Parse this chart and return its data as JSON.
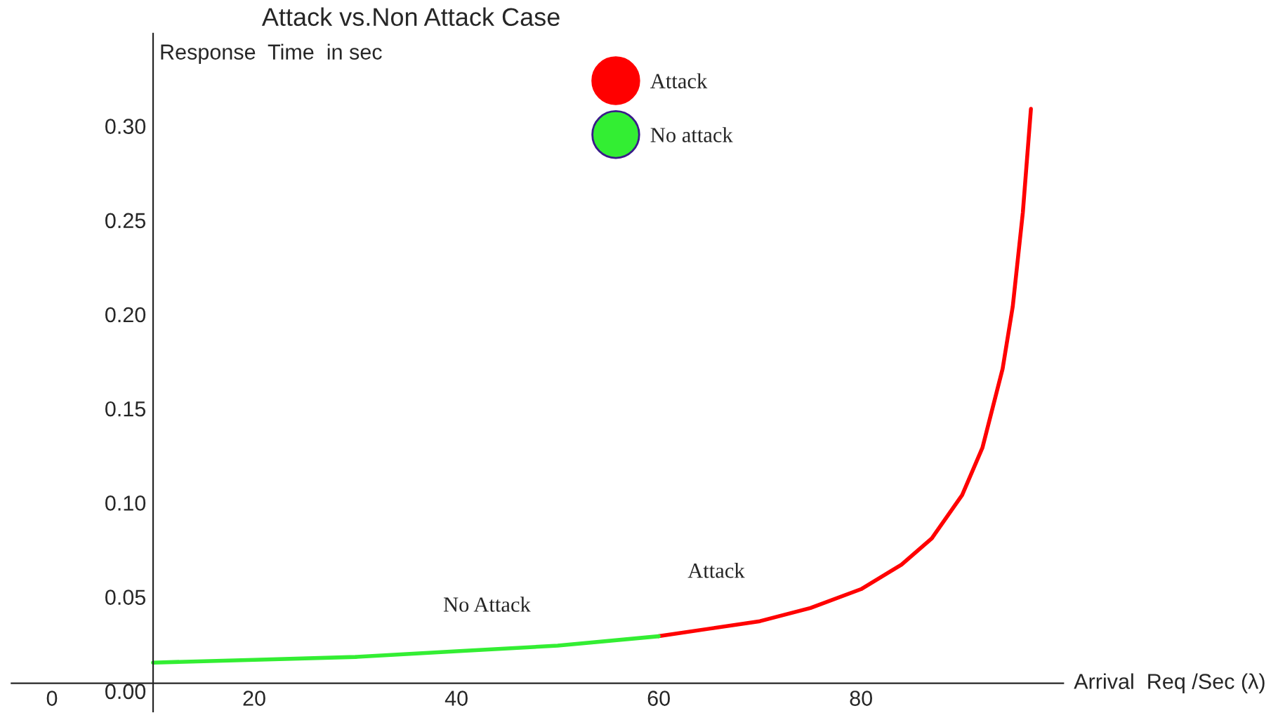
{
  "chart_data": {
    "type": "line",
    "title": "Attack vs.Non Attack Case",
    "xlabel": "Arrival  Req /Sec (λ)",
    "ylabel": "Response  Time  in sec",
    "xlim": [
      -4,
      100
    ],
    "ylim": [
      -0.015,
      0.345
    ],
    "xticks": [
      0,
      20,
      40,
      60,
      80
    ],
    "yticks": [
      {
        "value": 0,
        "label": "0.00"
      },
      {
        "value": 0.05,
        "label": "0.05"
      },
      {
        "value": 0.1,
        "label": "0.10"
      },
      {
        "value": 0.15,
        "label": "0.15"
      },
      {
        "value": 0.2,
        "label": "0.20"
      },
      {
        "value": 0.25,
        "label": "0.25"
      },
      {
        "value": 0.3,
        "label": "0.30"
      }
    ],
    "series": [
      {
        "name": "Attack",
        "color": "#ff0000",
        "x": [
          60,
          65,
          70,
          75,
          80,
          84,
          87,
          90,
          92,
          94,
          95,
          96,
          96.8
        ],
        "values": [
          0.025,
          0.029,
          0.033,
          0.04,
          0.05,
          0.063,
          0.077,
          0.1,
          0.125,
          0.167,
          0.2,
          0.25,
          0.305
        ]
      },
      {
        "name": "No attack",
        "color": "#33ee33",
        "x": [
          10,
          20,
          30,
          40,
          50,
          60
        ],
        "values": [
          0.011,
          0.0125,
          0.014,
          0.017,
          0.02,
          0.025
        ]
      }
    ],
    "annotations": [
      "No Attack",
      "Attack"
    ],
    "legend": "top",
    "marker": "none",
    "line_style": "solid",
    "grid": false
  }
}
